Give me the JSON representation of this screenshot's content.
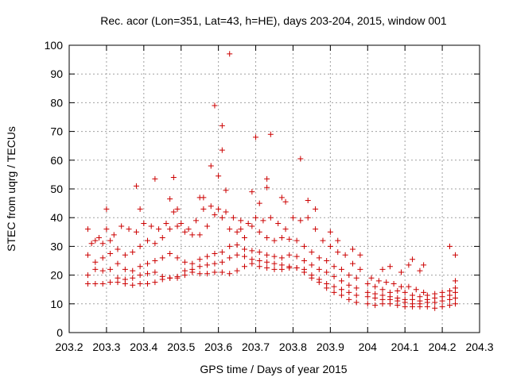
{
  "chart_data": {
    "type": "scatter",
    "title": "Rec. acor (Lon=351, Lat=43, h=HE), days 203-204, 2015, window 001",
    "xlabel": "GPS time / Days of year 2015",
    "ylabel": "STEC from uqrg / TECUs",
    "xlim": [
      203.2,
      204.3
    ],
    "ylim": [
      0,
      100
    ],
    "xticks": [
      203.2,
      203.3,
      203.4,
      203.5,
      203.6,
      203.7,
      203.8,
      203.9,
      204,
      204.1,
      204.2,
      204.3
    ],
    "xtick_labels": [
      "203.2",
      "203.3",
      "203.4",
      "203.5",
      "203.6",
      "203.7",
      "203.8",
      "203.9",
      "204",
      "204.1",
      "204.2",
      "204.3"
    ],
    "yticks": [
      0,
      10,
      20,
      30,
      40,
      50,
      60,
      70,
      80,
      90,
      100
    ],
    "ytick_labels": [
      "0",
      "10",
      "20",
      "30",
      "40",
      "50",
      "60",
      "70",
      "80",
      "90",
      "100"
    ],
    "grid": true,
    "legend": "none",
    "marker": "+",
    "color": "#cc0000",
    "series": [
      {
        "values": [
          [
            203.25,
            17
          ],
          [
            203.27,
            17
          ],
          [
            203.29,
            17
          ],
          [
            203.31,
            17.5
          ],
          [
            203.33,
            17.5
          ],
          [
            203.35,
            17
          ],
          [
            203.37,
            16.5
          ],
          [
            203.39,
            17
          ],
          [
            203.41,
            17
          ],
          [
            203.43,
            17.5
          ],
          [
            203.45,
            18.5
          ],
          [
            203.47,
            19
          ],
          [
            203.49,
            19
          ],
          [
            203.51,
            20
          ],
          [
            203.53,
            21
          ],
          [
            203.55,
            20.5
          ],
          [
            203.57,
            20.5
          ],
          [
            203.59,
            21
          ],
          [
            203.61,
            21
          ],
          [
            203.63,
            20.5
          ],
          [
            203.65,
            21.5
          ],
          [
            203.67,
            23
          ],
          [
            203.69,
            24
          ],
          [
            203.71,
            23
          ],
          [
            203.73,
            22.5
          ],
          [
            203.75,
            22
          ],
          [
            203.77,
            22
          ],
          [
            203.79,
            22.5
          ],
          [
            203.81,
            22.5
          ],
          [
            203.83,
            22
          ],
          [
            203.85,
            20
          ],
          [
            203.87,
            17.5
          ],
          [
            203.89,
            15.5
          ],
          [
            203.91,
            14
          ],
          [
            203.93,
            13
          ],
          [
            203.95,
            11.5
          ],
          [
            203.97,
            10.5
          ],
          [
            204.0,
            10
          ],
          [
            204.02,
            9.5
          ],
          [
            204.04,
            10
          ],
          [
            204.06,
            10
          ],
          [
            204.08,
            9.5
          ],
          [
            204.1,
            9
          ],
          [
            204.12,
            9
          ],
          [
            204.14,
            9
          ],
          [
            204.16,
            9
          ],
          [
            204.18,
            8.5
          ],
          [
            204.2,
            9
          ],
          [
            204.22,
            9.5
          ],
          [
            204.235,
            10
          ]
        ]
      },
      {
        "values": [
          [
            203.25,
            20
          ],
          [
            203.27,
            22
          ],
          [
            203.29,
            21.5
          ],
          [
            203.31,
            22
          ],
          [
            203.33,
            19
          ],
          [
            203.35,
            18.5
          ],
          [
            203.37,
            19
          ],
          [
            203.39,
            20
          ],
          [
            203.41,
            20.5
          ],
          [
            203.43,
            21
          ],
          [
            203.45,
            19.5
          ],
          [
            203.47,
            19
          ],
          [
            203.49,
            19.5
          ],
          [
            203.51,
            21.5
          ],
          [
            203.53,
            22
          ],
          [
            203.55,
            23
          ],
          [
            203.57,
            23.5
          ],
          [
            203.59,
            24
          ],
          [
            203.61,
            24.5
          ],
          [
            203.63,
            26
          ],
          [
            203.65,
            27
          ],
          [
            203.67,
            26.5
          ],
          [
            203.69,
            25.5
          ],
          [
            203.71,
            25
          ],
          [
            203.73,
            24.5
          ],
          [
            203.75,
            24
          ],
          [
            203.77,
            23.5
          ],
          [
            203.79,
            23
          ],
          [
            203.81,
            22.5
          ],
          [
            203.83,
            21
          ],
          [
            203.85,
            19
          ],
          [
            203.87,
            18.5
          ],
          [
            203.89,
            17
          ],
          [
            203.91,
            16
          ],
          [
            203.93,
            15
          ],
          [
            203.95,
            14
          ],
          [
            203.97,
            13
          ],
          [
            204.0,
            12.5
          ],
          [
            204.02,
            12
          ],
          [
            204.04,
            11.5
          ],
          [
            204.06,
            11.5
          ],
          [
            204.08,
            11
          ],
          [
            204.1,
            10.5
          ],
          [
            204.12,
            10
          ],
          [
            204.14,
            10
          ],
          [
            204.16,
            10.5
          ],
          [
            204.18,
            10.5
          ],
          [
            204.2,
            11
          ],
          [
            204.22,
            11.5
          ],
          [
            204.235,
            12
          ]
        ]
      },
      {
        "values": [
          [
            203.25,
            27
          ],
          [
            203.27,
            24.5
          ],
          [
            203.29,
            26
          ],
          [
            203.31,
            27.5
          ],
          [
            203.33,
            24
          ],
          [
            203.35,
            22
          ],
          [
            203.37,
            21.5
          ],
          [
            203.39,
            23
          ],
          [
            203.41,
            24
          ],
          [
            203.43,
            25
          ],
          [
            203.45,
            26
          ],
          [
            203.47,
            27.5
          ],
          [
            203.49,
            26
          ],
          [
            203.51,
            24.5
          ],
          [
            203.53,
            24
          ],
          [
            203.55,
            25.5
          ],
          [
            203.57,
            26.5
          ],
          [
            203.59,
            27.5
          ],
          [
            203.61,
            28
          ],
          [
            203.63,
            30
          ],
          [
            203.65,
            30.5
          ],
          [
            203.67,
            29
          ],
          [
            203.69,
            28.5
          ],
          [
            203.71,
            28
          ],
          [
            203.73,
            27
          ],
          [
            203.75,
            26.5
          ],
          [
            203.77,
            26
          ],
          [
            203.79,
            27
          ],
          [
            203.81,
            26.5
          ],
          [
            203.83,
            25
          ],
          [
            203.85,
            23.5
          ],
          [
            203.87,
            22
          ],
          [
            203.89,
            21
          ],
          [
            203.91,
            19.5
          ],
          [
            203.93,
            18
          ],
          [
            203.95,
            16.5
          ],
          [
            203.97,
            15.5
          ],
          [
            204.0,
            14
          ],
          [
            204.02,
            13.5
          ],
          [
            204.04,
            13
          ],
          [
            204.06,
            12.5
          ],
          [
            204.08,
            12
          ],
          [
            204.1,
            11.5
          ],
          [
            204.12,
            11.5
          ],
          [
            204.14,
            11
          ],
          [
            204.16,
            11.5
          ],
          [
            204.18,
            12
          ],
          [
            204.2,
            12.5
          ],
          [
            204.22,
            13
          ],
          [
            204.235,
            14
          ]
        ]
      },
      {
        "values": [
          [
            203.25,
            36
          ],
          [
            203.27,
            32
          ],
          [
            203.29,
            31
          ],
          [
            203.31,
            32
          ],
          [
            203.33,
            29
          ],
          [
            203.35,
            27
          ],
          [
            203.37,
            28
          ],
          [
            203.39,
            30
          ],
          [
            203.41,
            32
          ],
          [
            203.43,
            31
          ],
          [
            203.45,
            33
          ],
          [
            203.47,
            36
          ],
          [
            203.49,
            37
          ],
          [
            203.51,
            35
          ],
          [
            203.53,
            34
          ],
          [
            203.55,
            34
          ],
          [
            203.57,
            37
          ],
          [
            203.59,
            41
          ],
          [
            203.61,
            40
          ],
          [
            203.63,
            36
          ],
          [
            203.65,
            35
          ],
          [
            203.67,
            33
          ],
          [
            203.69,
            37
          ],
          [
            203.71,
            35
          ],
          [
            203.73,
            33
          ],
          [
            203.75,
            32
          ],
          [
            203.77,
            33
          ],
          [
            203.79,
            32.5
          ],
          [
            203.81,
            32
          ],
          [
            203.83,
            30
          ],
          [
            203.85,
            28
          ],
          [
            203.87,
            26
          ],
          [
            203.89,
            25
          ],
          [
            203.91,
            23
          ],
          [
            203.93,
            22
          ],
          [
            203.95,
            20
          ],
          [
            203.97,
            19
          ],
          [
            204.0,
            17
          ],
          [
            204.02,
            16
          ],
          [
            204.04,
            15
          ],
          [
            204.06,
            14
          ],
          [
            204.08,
            14.5
          ],
          [
            204.1,
            14
          ],
          [
            204.12,
            13
          ],
          [
            204.14,
            12.5
          ],
          [
            204.16,
            13
          ],
          [
            204.18,
            13.5
          ],
          [
            204.2,
            14
          ],
          [
            204.22,
            14.5
          ],
          [
            204.235,
            15.5
          ]
        ]
      },
      {
        "values": [
          [
            203.26,
            31
          ],
          [
            203.28,
            33
          ],
          [
            203.3,
            36
          ],
          [
            203.32,
            34
          ],
          [
            203.34,
            37
          ],
          [
            203.36,
            36
          ],
          [
            203.38,
            35
          ],
          [
            203.4,
            38
          ],
          [
            203.42,
            37
          ],
          [
            203.44,
            36
          ],
          [
            203.46,
            38
          ],
          [
            203.48,
            42
          ],
          [
            203.5,
            38
          ],
          [
            203.52,
            36
          ],
          [
            203.54,
            39
          ],
          [
            203.56,
            43
          ],
          [
            203.58,
            44
          ],
          [
            203.6,
            43
          ],
          [
            203.62,
            42
          ],
          [
            203.64,
            40
          ],
          [
            203.66,
            39
          ],
          [
            203.68,
            38
          ],
          [
            203.7,
            40
          ],
          [
            203.72,
            39
          ],
          [
            203.74,
            40
          ],
          [
            203.76,
            38
          ],
          [
            203.78,
            36
          ],
          [
            203.8,
            40
          ],
          [
            203.82,
            39
          ],
          [
            203.84,
            40
          ],
          [
            203.86,
            36
          ],
          [
            203.88,
            32
          ],
          [
            203.9,
            30
          ],
          [
            203.92,
            28
          ],
          [
            203.94,
            27
          ],
          [
            203.96,
            24
          ],
          [
            203.98,
            22
          ],
          [
            204.01,
            19
          ],
          [
            204.03,
            18
          ],
          [
            204.05,
            17.5
          ],
          [
            204.07,
            17
          ],
          [
            204.09,
            16
          ],
          [
            204.11,
            16
          ],
          [
            204.13,
            15
          ],
          [
            204.15,
            14
          ]
        ]
      },
      {
        "values": [
          [
            203.3,
            43
          ],
          [
            203.38,
            51
          ],
          [
            203.39,
            43
          ],
          [
            203.43,
            53.5
          ],
          [
            203.47,
            46.5
          ],
          [
            203.48,
            54
          ],
          [
            203.49,
            43
          ],
          [
            203.55,
            47
          ],
          [
            203.56,
            47
          ],
          [
            203.58,
            58
          ],
          [
            203.59,
            79
          ],
          [
            203.6,
            54.5
          ],
          [
            203.61,
            72
          ],
          [
            203.61,
            63.5
          ],
          [
            203.62,
            49.5
          ],
          [
            203.63,
            97
          ],
          [
            203.66,
            36
          ],
          [
            203.69,
            49
          ],
          [
            203.7,
            68
          ],
          [
            203.71,
            45
          ],
          [
            203.73,
            53.5
          ],
          [
            203.73,
            50.5
          ],
          [
            203.74,
            69
          ],
          [
            203.77,
            47
          ],
          [
            203.78,
            45.5
          ],
          [
            203.82,
            60.5
          ],
          [
            203.84,
            46
          ],
          [
            203.86,
            43
          ],
          [
            203.9,
            35
          ],
          [
            203.92,
            32
          ],
          [
            203.96,
            29
          ],
          [
            203.98,
            27
          ],
          [
            204.04,
            22
          ],
          [
            204.06,
            23
          ],
          [
            204.09,
            21
          ],
          [
            204.11,
            23.5
          ],
          [
            204.12,
            25.5
          ],
          [
            204.14,
            21.5
          ],
          [
            204.15,
            23.5
          ],
          [
            204.22,
            30
          ],
          [
            204.235,
            27
          ],
          [
            204.235,
            18
          ]
        ]
      }
    ]
  }
}
